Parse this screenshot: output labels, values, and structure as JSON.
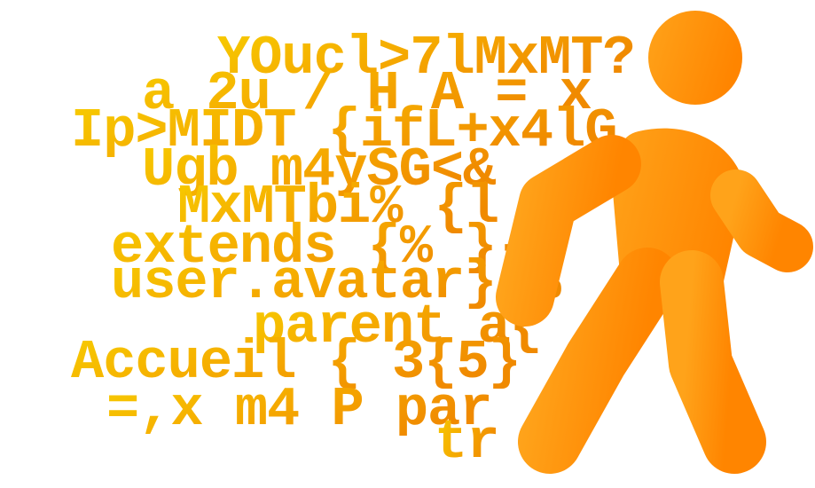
{
  "art": {
    "lines": [
      "YOucl>7lMxMT?",
      "a 2u / H A = x",
      "Ip>MIDT {ifL+x4lG",
      "Ugb m4ySG<&",
      "MxMTbi% {l",
      "extends {% }-",
      "user.avatar} %",
      "parent a{",
      "Accueil { 3{5}",
      "=,x m4 P par",
      "tr"
    ],
    "colors": {
      "code_light": "#f7cc00",
      "code_mid": "#f5a800",
      "code_dark": "#f08a00",
      "figure_light": "#ffa31a",
      "figure_dark": "#ff8500"
    },
    "icon": "walking-person-icon"
  }
}
